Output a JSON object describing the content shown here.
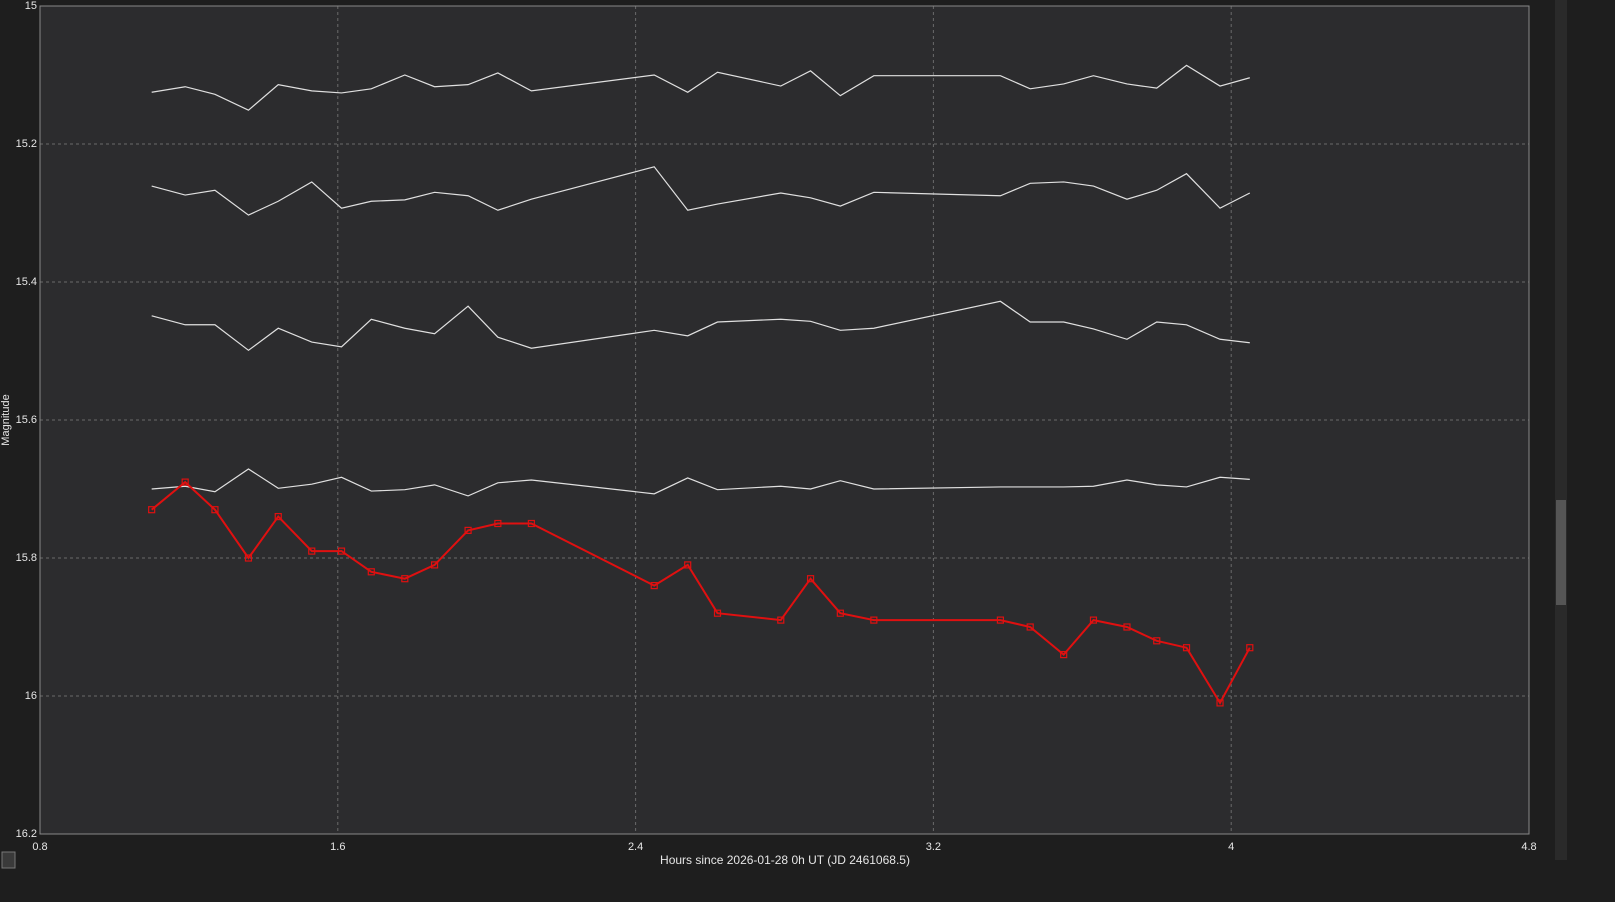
{
  "chart_data": {
    "type": "line",
    "x_label": "Hours since 2026-01-28 0h UT (JD 2461068.5)",
    "y_label": "Magnitude",
    "x": [
      1.1,
      1.19,
      1.27,
      1.36,
      1.44,
      1.53,
      1.61,
      1.69,
      1.78,
      1.86,
      1.95,
      2.03,
      2.12,
      2.45,
      2.54,
      2.62,
      2.79,
      2.87,
      2.95,
      3.04,
      3.38,
      3.46,
      3.55,
      3.63,
      3.72,
      3.8,
      3.88,
      3.97,
      4.05
    ],
    "series": [
      {
        "color": "#e0e0e0",
        "markers": false,
        "values": [
          15.125,
          15.117,
          15.128,
          15.151,
          15.114,
          15.123,
          15.126,
          15.12,
          15.1,
          15.117,
          15.114,
          15.097,
          15.123,
          15.1,
          15.125,
          15.096,
          15.116,
          15.094,
          15.13,
          15.101,
          15.101,
          15.12,
          15.113,
          15.101,
          15.113,
          15.119,
          15.086,
          15.116,
          15.104
        ]
      },
      {
        "color": "#e0e0e0",
        "markers": false,
        "values": [
          15.261,
          15.274,
          15.267,
          15.303,
          15.283,
          15.255,
          15.293,
          15.283,
          15.281,
          15.27,
          15.275,
          15.296,
          15.28,
          15.233,
          15.296,
          15.287,
          15.271,
          15.278,
          15.29,
          15.27,
          15.275,
          15.257,
          15.255,
          15.261,
          15.28,
          15.267,
          15.243,
          15.293,
          15.271
        ]
      },
      {
        "color": "#e0e0e0",
        "markers": false,
        "values": [
          15.449,
          15.462,
          15.462,
          15.499,
          15.467,
          15.487,
          15.494,
          15.454,
          15.467,
          15.475,
          15.435,
          15.48,
          15.496,
          15.47,
          15.478,
          15.458,
          15.454,
          15.457,
          15.47,
          15.467,
          15.428,
          15.458,
          15.458,
          15.468,
          15.483,
          15.458,
          15.462,
          15.483,
          15.488
        ]
      },
      {
        "color": "#e0e0e0",
        "markers": false,
        "values": [
          15.7,
          15.696,
          15.704,
          15.671,
          15.699,
          15.693,
          15.683,
          15.703,
          15.701,
          15.694,
          15.71,
          15.691,
          15.687,
          15.707,
          15.684,
          15.701,
          15.696,
          15.7,
          15.688,
          15.7,
          15.697,
          15.697,
          15.697,
          15.696,
          15.687,
          15.694,
          15.697,
          15.683,
          15.686
        ]
      },
      {
        "color": "#e01010",
        "markers": true,
        "values": [
          15.73,
          15.69,
          15.73,
          15.8,
          15.74,
          15.79,
          15.79,
          15.82,
          15.83,
          15.81,
          15.76,
          15.75,
          15.75,
          15.84,
          15.81,
          15.88,
          15.89,
          15.83,
          15.88,
          15.89,
          15.89,
          15.9,
          15.94,
          15.89,
          15.9,
          15.92,
          15.93,
          16.01,
          15.93
        ]
      }
    ],
    "xlim": [
      0.8,
      4.8
    ],
    "xticks": [
      0.8,
      1.6,
      2.4,
      3.2,
      4,
      4.8
    ],
    "ylim": [
      15,
      16.2
    ],
    "yticks": [
      15,
      15.2,
      15.4,
      15.6,
      15.8,
      16,
      16.2
    ],
    "y_inverted": true,
    "grid": true
  }
}
